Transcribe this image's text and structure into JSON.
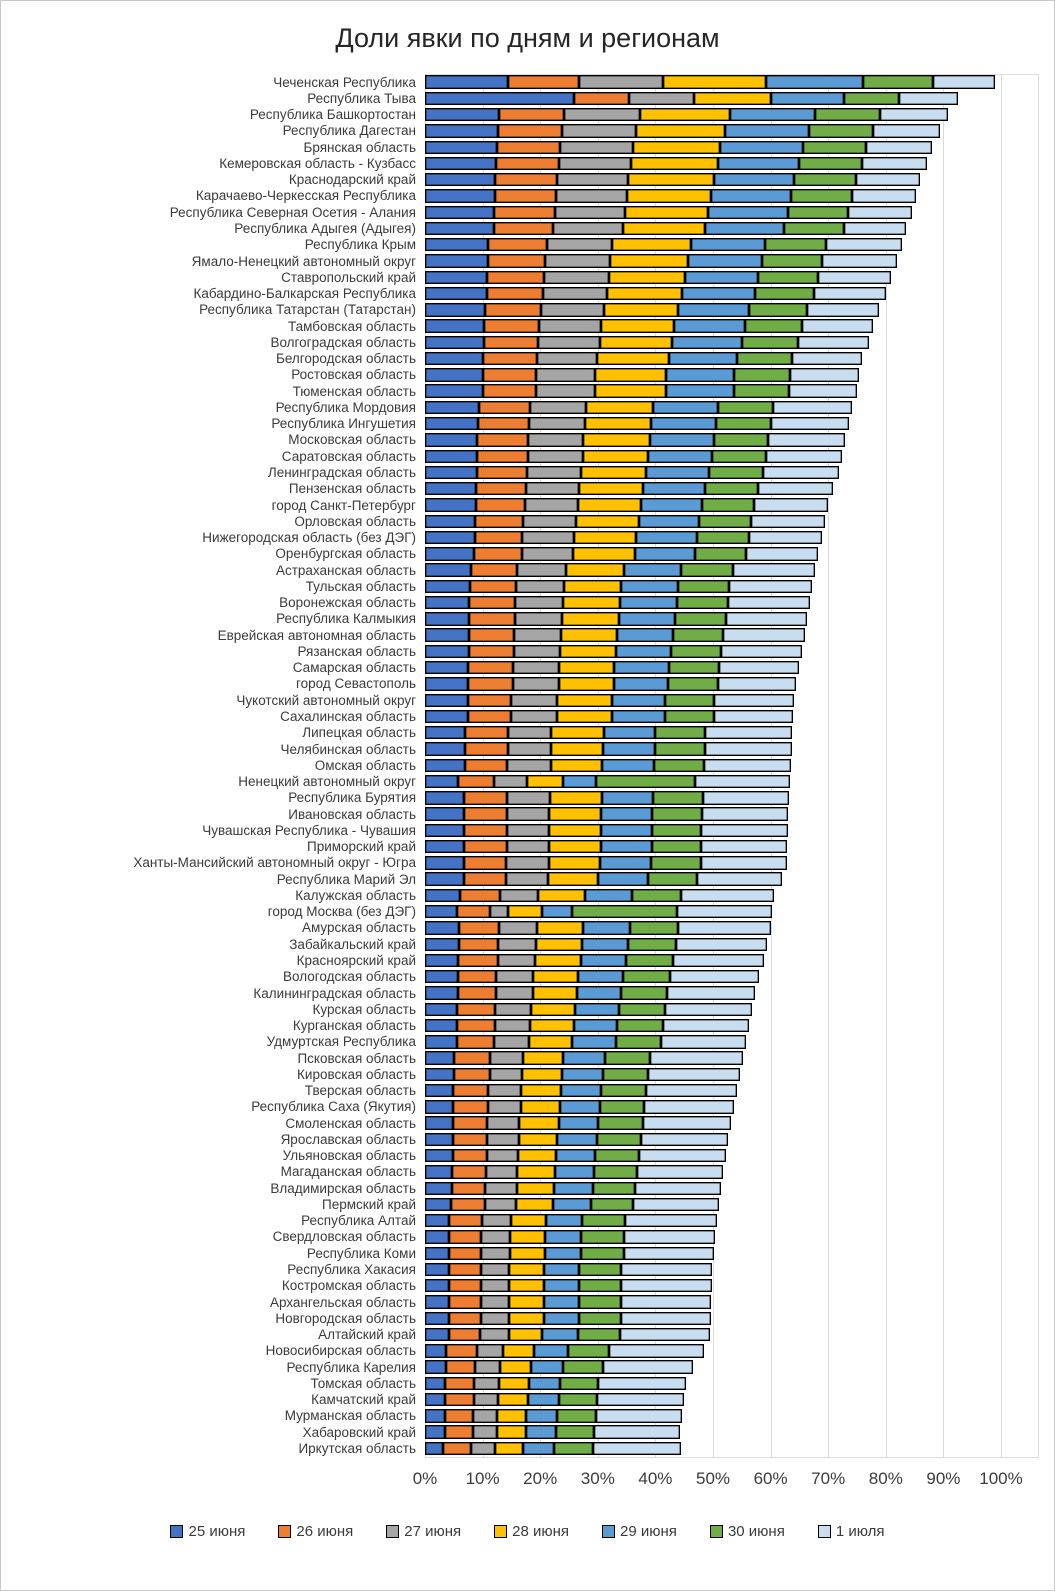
{
  "title": "Доли явки по дням и регионам",
  "chart_data": {
    "type": "bar",
    "orientation": "horizontal-stacked",
    "title": "Доли явки по дням и регионам",
    "xlabel": "",
    "ylabel": "",
    "xlim": [
      0,
      100
    ],
    "grid": true,
    "legend_position": "bottom",
    "x_ticks": [
      "0%",
      "10%",
      "20%",
      "30%",
      "40%",
      "50%",
      "60%",
      "70%",
      "80%",
      "90%",
      "100%"
    ],
    "series_names": [
      "25 июня",
      "26 июня",
      "27 июня",
      "28 июня",
      "29 июня",
      "30 июня",
      "1 июля"
    ],
    "series_colors": [
      "#4472C4",
      "#ED7D31",
      "#A5A5A5",
      "#FFC000",
      "#5B9BD5",
      "#70AD47",
      "#C9DDF1"
    ],
    "regions": [
      {
        "name": "Чеченская Республика",
        "values": [
          14.4,
          12.4,
          14.6,
          17.8,
          16.9,
          12.1,
          10.8
        ]
      },
      {
        "name": "Республика Тыва",
        "values": [
          25.9,
          9.6,
          11.2,
          13.3,
          12.7,
          9.6,
          10.2
        ]
      },
      {
        "name": "Республика Башкортостан",
        "values": [
          12.9,
          11.3,
          13.1,
          15.6,
          14.8,
          11.3,
          11.8
        ]
      },
      {
        "name": "Республика Дагестан",
        "values": [
          12.7,
          11.1,
          12.9,
          15.4,
          14.6,
          11.1,
          11.7
        ]
      },
      {
        "name": "Брянская область",
        "values": [
          12.5,
          10.9,
          12.7,
          15.2,
          14.4,
          10.9,
          11.5
        ]
      },
      {
        "name": "Кемеровская область - Кузбасс",
        "values": [
          12.4,
          10.8,
          12.6,
          15.0,
          14.2,
          10.8,
          11.4
        ]
      },
      {
        "name": "Краснодарский край",
        "values": [
          12.2,
          10.7,
          12.4,
          14.8,
          14.0,
          10.7,
          11.2
        ]
      },
      {
        "name": "Карачаево-Черкесская Республика",
        "values": [
          12.1,
          10.6,
          12.3,
          14.7,
          13.9,
          10.6,
          11.1
        ]
      },
      {
        "name": "Республика Северная Осетия - Алания",
        "values": [
          12.0,
          10.5,
          12.2,
          14.5,
          13.8,
          10.5,
          11.0
        ]
      },
      {
        "name": "Республика Адыгея (Адыгея)",
        "values": [
          11.9,
          10.4,
          12.0,
          14.4,
          13.6,
          10.4,
          10.9
        ]
      },
      {
        "name": "Республика Крым",
        "values": [
          11.0,
          10.1,
          11.4,
          13.6,
          13.0,
          10.5,
          13.2
        ]
      },
      {
        "name": "Ямало-Ненецкий автономный округ",
        "values": [
          10.9,
          10.0,
          11.3,
          13.4,
          12.9,
          10.4,
          13.1
        ]
      },
      {
        "name": "Ставропольский край",
        "values": [
          10.8,
          9.9,
          11.2,
          13.3,
          12.7,
          10.3,
          12.8
        ]
      },
      {
        "name": "Кабардино-Балкарская Республика",
        "values": [
          10.7,
          9.8,
          11.1,
          13.1,
          12.6,
          10.2,
          12.6
        ]
      },
      {
        "name": "Республика Татарстан (Татарстан)",
        "values": [
          10.5,
          9.6,
          10.9,
          12.9,
          12.4,
          10.0,
          12.6
        ]
      },
      {
        "name": "Тамбовская область",
        "values": [
          10.3,
          9.5,
          10.7,
          12.8,
          12.2,
          9.9,
          12.4
        ]
      },
      {
        "name": "Волгоградская область",
        "values": [
          10.3,
          9.4,
          10.6,
          12.6,
          12.1,
          9.8,
          12.3
        ]
      },
      {
        "name": "Белгородская область",
        "values": [
          10.1,
          9.3,
          10.5,
          12.4,
          11.9,
          9.6,
          12.1
        ]
      },
      {
        "name": "Ростовская область",
        "values": [
          10.0,
          9.2,
          10.4,
          12.3,
          11.8,
          9.6,
          12.0
        ]
      },
      {
        "name": "Тюменская область",
        "values": [
          10.0,
          9.2,
          10.4,
          12.3,
          11.8,
          9.5,
          11.8
        ]
      },
      {
        "name": "Республика Мордовия",
        "values": [
          9.3,
          9.0,
          9.7,
          11.6,
          11.3,
          9.6,
          13.7
        ]
      },
      {
        "name": "Республика Ингушетия",
        "values": [
          9.2,
          8.9,
          9.6,
          11.6,
          11.2,
          9.6,
          13.5
        ]
      },
      {
        "name": "Московская область",
        "values": [
          9.1,
          8.8,
          9.6,
          11.5,
          11.1,
          9.5,
          13.4
        ]
      },
      {
        "name": "Саратовская область",
        "values": [
          9.1,
          8.8,
          9.5,
          11.4,
          11.0,
          9.4,
          13.2
        ]
      },
      {
        "name": "Ленинградская область",
        "values": [
          9.0,
          8.7,
          9.4,
          11.3,
          10.9,
          9.3,
          13.2
        ]
      },
      {
        "name": "Пензенская область",
        "values": [
          8.9,
          8.6,
          9.3,
          11.1,
          10.8,
          9.2,
          12.9
        ]
      },
      {
        "name": "город Санкт-Петербург",
        "values": [
          8.8,
          8.5,
          9.2,
          11.0,
          10.6,
          9.1,
          12.8
        ]
      },
      {
        "name": "Орловская область",
        "values": [
          8.7,
          8.4,
          9.1,
          10.9,
          10.5,
          9.0,
          12.8
        ]
      },
      {
        "name": "Нижегородская область (без ДЭГ)",
        "values": [
          8.6,
          8.3,
          9.0,
          10.8,
          10.5,
          9.0,
          12.7
        ]
      },
      {
        "name": "Оренбургская область",
        "values": [
          8.5,
          8.3,
          8.9,
          10.7,
          10.4,
          8.9,
          12.6
        ]
      },
      {
        "name": "Астраханская область",
        "values": [
          7.9,
          8.1,
          8.4,
          10.1,
          9.9,
          9.0,
          14.3
        ]
      },
      {
        "name": "Тульская область",
        "values": [
          7.8,
          8.0,
          8.3,
          10.0,
          9.8,
          8.9,
          14.4
        ]
      },
      {
        "name": "Воронежская область",
        "values": [
          7.7,
          7.9,
          8.3,
          10.0,
          9.8,
          8.9,
          14.2
        ]
      },
      {
        "name": "Республика Калмыкия",
        "values": [
          7.7,
          7.9,
          8.2,
          9.9,
          9.7,
          8.8,
          14.2
        ]
      },
      {
        "name": "Еврейская автономная область",
        "values": [
          7.6,
          7.8,
          8.2,
          9.8,
          9.6,
          8.8,
          14.1
        ]
      },
      {
        "name": "Рязанская область",
        "values": [
          7.6,
          7.8,
          8.1,
          9.7,
          9.5,
          8.7,
          14.0
        ]
      },
      {
        "name": "Самарская область",
        "values": [
          7.5,
          7.7,
          8.0,
          9.7,
          9.5,
          8.6,
          13.9
        ]
      },
      {
        "name": "город Севастополь",
        "values": [
          7.5,
          7.7,
          8.0,
          9.6,
          9.4,
          8.6,
          13.6
        ]
      },
      {
        "name": "Чукотский автономный округ",
        "values": [
          7.4,
          7.6,
          7.9,
          9.5,
          9.3,
          8.5,
          13.8
        ]
      },
      {
        "name": "Сахалинская область",
        "values": [
          7.4,
          7.6,
          7.9,
          9.5,
          9.3,
          8.5,
          13.7
        ]
      },
      {
        "name": "Липецкая область",
        "values": [
          6.9,
          7.5,
          7.5,
          9.1,
          9.0,
          8.7,
          15.1
        ]
      },
      {
        "name": "Челябинская область",
        "values": [
          6.9,
          7.5,
          7.5,
          9.0,
          9.0,
          8.7,
          15.1
        ]
      },
      {
        "name": "Омская область",
        "values": [
          6.9,
          7.4,
          7.5,
          9.0,
          9.0,
          8.7,
          15.0
        ]
      },
      {
        "name": "Ненецкий автономный округ",
        "values": [
          5.7,
          6.3,
          5.7,
          6.3,
          5.7,
          17.1,
          16.5
        ]
      },
      {
        "name": "Республика Бурятия",
        "values": [
          6.8,
          7.4,
          7.5,
          9.0,
          8.9,
          8.7,
          14.9
        ]
      },
      {
        "name": "Ивановская область",
        "values": [
          6.8,
          7.4,
          7.4,
          9.0,
          8.9,
          8.6,
          15.0
        ]
      },
      {
        "name": "Чувашская Республика - Чувашия",
        "values": [
          6.8,
          7.4,
          7.4,
          8.9,
          8.9,
          8.6,
          15.0
        ]
      },
      {
        "name": "Приморский край",
        "values": [
          6.8,
          7.4,
          7.4,
          8.9,
          8.9,
          8.6,
          14.9
        ]
      },
      {
        "name": "Ханты-Мансийский автономный округ - Югра",
        "values": [
          6.8,
          7.3,
          7.4,
          8.9,
          8.9,
          8.6,
          14.9
        ]
      },
      {
        "name": "Республика Марий Эл",
        "values": [
          6.7,
          7.3,
          7.3,
          8.8,
          8.7,
          8.5,
          14.7
        ]
      },
      {
        "name": "Калужская область",
        "values": [
          6.0,
          7.0,
          6.7,
          8.1,
          8.2,
          8.5,
          16.1
        ]
      },
      {
        "name": "город Москва (без ДЭГ)",
        "values": [
          5.5,
          5.7,
          3.2,
          5.9,
          5.2,
          18.3,
          16.4
        ]
      },
      {
        "name": "Амурская область",
        "values": [
          5.9,
          6.9,
          6.7,
          8.0,
          8.1,
          8.4,
          16.0
        ]
      },
      {
        "name": "Забайкальский край",
        "values": [
          5.9,
          6.8,
          6.6,
          8.0,
          8.0,
          8.3,
          15.8
        ]
      },
      {
        "name": "Красноярский край",
        "values": [
          5.8,
          6.8,
          6.5,
          7.9,
          7.9,
          8.2,
          15.7
        ]
      },
      {
        "name": "Вологодская область",
        "values": [
          5.7,
          6.7,
          6.4,
          7.8,
          7.8,
          8.1,
          15.5
        ]
      },
      {
        "name": "Калининградская область",
        "values": [
          5.7,
          6.6,
          6.4,
          7.7,
          7.7,
          8.0,
          15.2
        ]
      },
      {
        "name": "Курская область",
        "values": [
          5.6,
          6.5,
          6.3,
          7.6,
          7.7,
          7.9,
          15.1
        ]
      },
      {
        "name": "Курганская область",
        "values": [
          5.6,
          6.5,
          6.2,
          7.5,
          7.6,
          7.9,
          14.9
        ]
      },
      {
        "name": "Удмуртская Республика",
        "values": [
          5.5,
          6.4,
          6.2,
          7.5,
          7.5,
          7.8,
          14.8
        ]
      },
      {
        "name": "Псковская область",
        "values": [
          5.0,
          6.2,
          5.8,
          7.0,
          7.2,
          7.9,
          16.1
        ]
      },
      {
        "name": "Кировская область",
        "values": [
          5.0,
          6.2,
          5.7,
          6.9,
          7.1,
          7.9,
          15.9
        ]
      },
      {
        "name": "Тверская область",
        "values": [
          4.9,
          6.1,
          5.7,
          6.9,
          7.0,
          7.8,
          15.8
        ]
      },
      {
        "name": "Республика Саха (Якутия)",
        "values": [
          4.9,
          6.1,
          5.6,
          6.8,
          7.0,
          7.7,
          15.6
        ]
      },
      {
        "name": "Смоленская область",
        "values": [
          4.8,
          6.0,
          5.6,
          6.8,
          6.9,
          7.7,
          15.4
        ]
      },
      {
        "name": "Ярославская область",
        "values": [
          4.8,
          6.0,
          5.5,
          6.7,
          6.9,
          7.6,
          15.2
        ]
      },
      {
        "name": "Ульяновская область",
        "values": [
          4.8,
          5.9,
          5.5,
          6.6,
          6.8,
          7.5,
          15.1
        ]
      },
      {
        "name": "Магаданская область",
        "values": [
          4.7,
          5.9,
          5.4,
          6.6,
          6.7,
          7.5,
          15.0
        ]
      },
      {
        "name": "Владимирская область",
        "values": [
          4.7,
          5.8,
          5.4,
          6.5,
          6.7,
          7.4,
          14.9
        ]
      },
      {
        "name": "Пермский край",
        "values": [
          4.6,
          5.8,
          5.4,
          6.5,
          6.6,
          7.3,
          14.8
        ]
      },
      {
        "name": "Республика Алтай",
        "values": [
          4.2,
          5.7,
          5.0,
          6.1,
          6.3,
          7.5,
          15.9
        ]
      },
      {
        "name": "Свердловская область",
        "values": [
          4.2,
          5.6,
          5.0,
          6.0,
          6.3,
          7.4,
          15.9
        ]
      },
      {
        "name": "Республика Коми",
        "values": [
          4.2,
          5.6,
          5.0,
          6.0,
          6.3,
          7.4,
          15.6
        ]
      },
      {
        "name": "Республика Хакасия",
        "values": [
          4.1,
          5.6,
          4.9,
          6.0,
          6.2,
          7.3,
          15.8
        ]
      },
      {
        "name": "Костромская область",
        "values": [
          4.1,
          5.6,
          4.9,
          6.0,
          6.2,
          7.3,
          15.7
        ]
      },
      {
        "name": "Архангельская область",
        "values": [
          4.1,
          5.6,
          4.9,
          6.0,
          6.2,
          7.3,
          15.6
        ]
      },
      {
        "name": "Новгородская область",
        "values": [
          4.1,
          5.6,
          4.9,
          6.0,
          6.2,
          7.3,
          15.5
        ]
      },
      {
        "name": "Алтайский край",
        "values": [
          4.1,
          5.5,
          4.9,
          5.9,
          6.2,
          7.3,
          15.6
        ]
      },
      {
        "name": "Новосибирская область",
        "values": [
          3.7,
          5.3,
          4.5,
          5.5,
          5.8,
          7.2,
          16.4
        ]
      },
      {
        "name": "Республика Карелия",
        "values": [
          3.6,
          5.1,
          4.4,
          5.3,
          5.6,
          6.9,
          15.6
        ]
      },
      {
        "name": "Томская область",
        "values": [
          3.5,
          5.0,
          4.3,
          5.2,
          5.4,
          6.7,
          15.2
        ]
      },
      {
        "name": "Камчатский край",
        "values": [
          3.5,
          5.0,
          4.2,
          5.1,
          5.4,
          6.7,
          15.1
        ]
      },
      {
        "name": "Мурманская область",
        "values": [
          3.4,
          4.9,
          4.2,
          5.1,
          5.4,
          6.7,
          15.0
        ]
      },
      {
        "name": "Хабаровский край",
        "values": [
          3.4,
          4.9,
          4.2,
          5.0,
          5.3,
          6.6,
          14.9
        ]
      },
      {
        "name": "Иркутская область",
        "values": [
          3.2,
          4.8,
          4.1,
          5.0,
          5.3,
          6.7,
          15.4
        ]
      }
    ]
  }
}
